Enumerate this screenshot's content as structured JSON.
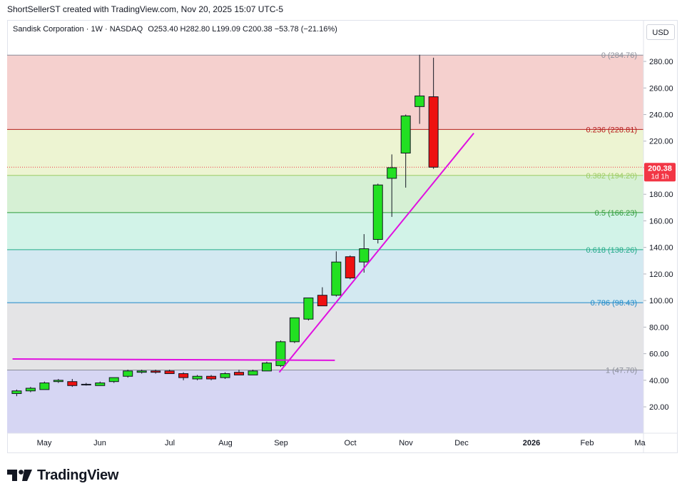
{
  "header": {
    "attribution": "ShortSellerST created with TradingView.com, Nov 20, 2025 15:07 UTC-5"
  },
  "legend": {
    "symbol": "Sandisk Corporation · 1W · NASDAQ",
    "open_label": "O",
    "open": "253.40",
    "high_label": "H",
    "high": "282.80",
    "low_label": "L",
    "low": "199.09",
    "close_label": "C",
    "close": "200.38",
    "change": "−53.78 (−21.16%)"
  },
  "currency_button": "USD",
  "price_badge": {
    "price": "200.38",
    "countdown": "1d 1h"
  },
  "logo_text": "TradingView",
  "colors": {
    "up": "#22e022",
    "down": "#ee1111",
    "trend": "#e010e0",
    "badge": "#f23645"
  },
  "chart_data": {
    "type": "candlestick",
    "interval": "1W",
    "ylim": [
      0,
      295
    ],
    "y_ticks": [
      "20.00",
      "40.00",
      "60.00",
      "80.00",
      "100.00",
      "120.00",
      "140.00",
      "160.00",
      "180.00",
      "200.00",
      "220.00",
      "240.00",
      "260.00",
      "280.00"
    ],
    "x_ticks": [
      "May",
      "Jun",
      "Jul",
      "Aug",
      "Sep",
      "Oct",
      "Nov",
      "Dec",
      "2026",
      "Feb",
      "Ma"
    ],
    "candles": [
      {
        "o": 30,
        "h": 33,
        "l": 28,
        "c": 32
      },
      {
        "o": 32,
        "h": 35,
        "l": 31,
        "c": 34
      },
      {
        "o": 33,
        "h": 39,
        "l": 33,
        "c": 38
      },
      {
        "o": 39,
        "h": 41,
        "l": 38,
        "c": 40
      },
      {
        "o": 39,
        "h": 41,
        "l": 35,
        "c": 36
      },
      {
        "o": 37,
        "h": 38,
        "l": 36,
        "c": 37
      },
      {
        "o": 36,
        "h": 39,
        "l": 36,
        "c": 38
      },
      {
        "o": 39,
        "h": 42,
        "l": 38,
        "c": 42
      },
      {
        "o": 43,
        "h": 48,
        "l": 42,
        "c": 47
      },
      {
        "o": 46,
        "h": 48,
        "l": 45,
        "c": 47
      },
      {
        "o": 47,
        "h": 48,
        "l": 45,
        "c": 46
      },
      {
        "o": 47,
        "h": 48,
        "l": 45,
        "c": 45
      },
      {
        "o": 45,
        "h": 46,
        "l": 40,
        "c": 42
      },
      {
        "o": 41,
        "h": 44,
        "l": 40,
        "c": 43
      },
      {
        "o": 43,
        "h": 44,
        "l": 40,
        "c": 41
      },
      {
        "o": 42,
        "h": 46,
        "l": 41,
        "c": 45
      },
      {
        "o": 46,
        "h": 48,
        "l": 44,
        "c": 44
      },
      {
        "o": 44,
        "h": 48,
        "l": 44,
        "c": 47
      },
      {
        "o": 47,
        "h": 54,
        "l": 47,
        "c": 53
      },
      {
        "o": 51,
        "h": 70,
        "l": 50,
        "c": 69
      },
      {
        "o": 69,
        "h": 87,
        "l": 68,
        "c": 87
      },
      {
        "o": 86,
        "h": 102,
        "l": 85,
        "c": 102
      },
      {
        "o": 104,
        "h": 110,
        "l": 96,
        "c": 96
      },
      {
        "o": 104,
        "h": 137,
        "l": 103,
        "c": 129
      },
      {
        "o": 133,
        "h": 134,
        "l": 116,
        "c": 117
      },
      {
        "o": 129,
        "h": 150,
        "l": 121,
        "c": 139
      },
      {
        "o": 146,
        "h": 188,
        "l": 143,
        "c": 187
      },
      {
        "o": 192,
        "h": 210,
        "l": 163,
        "c": 200
      },
      {
        "o": 211,
        "h": 240,
        "l": 185,
        "c": 239
      },
      {
        "o": 246,
        "h": 285,
        "l": 233,
        "c": 254
      },
      {
        "o": 253.4,
        "h": 282.8,
        "l": 199.09,
        "c": 200.38
      }
    ],
    "fibonacci": [
      {
        "ratio": "0",
        "value": "284.76",
        "fill": "#f5d0ce",
        "line": "#8a8e99",
        "text": "#8a8e99"
      },
      {
        "ratio": "0.236",
        "value": "228.81",
        "fill": "#edf4d2",
        "line": "#b71c1c",
        "text": "#b71c1c"
      },
      {
        "ratio": "0.382",
        "value": "194.20",
        "fill": "#d6f0d4",
        "line": "#9ccc65",
        "text": "#9ccc65"
      },
      {
        "ratio": "0.5",
        "value": "166.23",
        "fill": "#d2f3e8",
        "line": "#2e9b3a",
        "text": "#2e9b3a"
      },
      {
        "ratio": "0.618",
        "value": "138.26",
        "fill": "#d3e9f1",
        "line": "#22aa88",
        "text": "#22aa88"
      },
      {
        "ratio": "0.786",
        "value": "98.43",
        "fill": "#e4e4e6",
        "line": "#1e88c8",
        "text": "#1e88c8"
      },
      {
        "ratio": "1",
        "value": "47.70",
        "fill": "#d6d6f3",
        "line": "#8a8e99",
        "text": "#8a8e99"
      }
    ],
    "trend_lines": [
      {
        "from": {
          "t": -0.3,
          "v": 56
        },
        "to": {
          "t": 22.9,
          "v": 55
        }
      },
      {
        "from": {
          "t": 18.9,
          "v": 46
        },
        "to": {
          "t": 32.9,
          "v": 226
        }
      }
    ],
    "last_price": 200.38
  }
}
